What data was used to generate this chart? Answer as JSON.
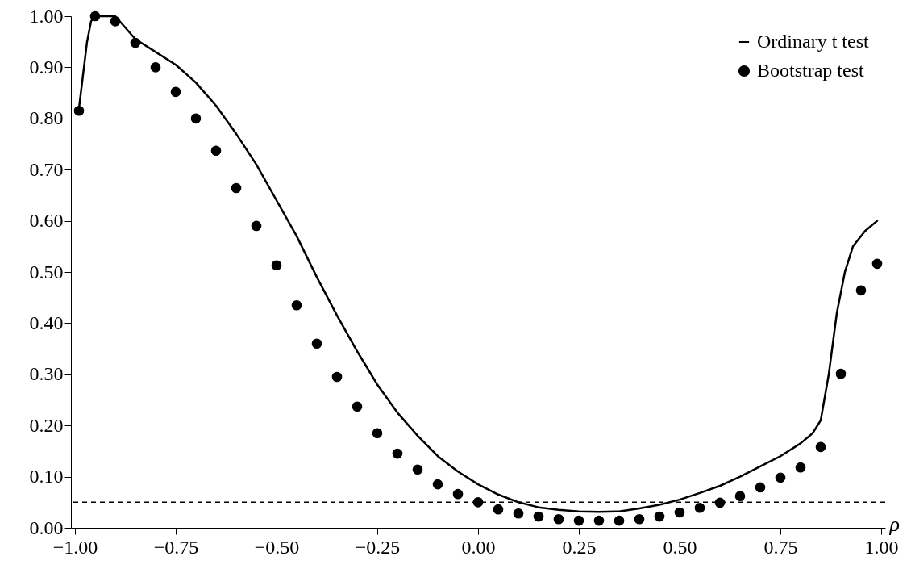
{
  "chart_data": {
    "type": "line",
    "xlabel": "ρ",
    "series": [
      {
        "name": "Ordinary t test",
        "color": "#000000",
        "marker": "none",
        "line_style": "solid",
        "x": [
          -0.99,
          -0.97,
          -0.96,
          -0.95,
          -0.9,
          -0.85,
          -0.8,
          -0.75,
          -0.7,
          -0.65,
          -0.6,
          -0.55,
          -0.5,
          -0.45,
          -0.4,
          -0.35,
          -0.3,
          -0.25,
          -0.2,
          -0.15,
          -0.1,
          -0.05,
          0,
          0.05,
          0.1,
          0.15,
          0.2,
          0.25,
          0.3,
          0.35,
          0.4,
          0.45,
          0.5,
          0.55,
          0.6,
          0.65,
          0.7,
          0.75,
          0.8,
          0.83,
          0.85,
          0.87,
          0.89,
          0.91,
          0.93,
          0.96,
          0.99
        ],
        "values": [
          0.82,
          0.95,
          0.99,
          1.0,
          1.0,
          0.955,
          0.93,
          0.905,
          0.87,
          0.825,
          0.77,
          0.71,
          0.64,
          0.57,
          0.49,
          0.415,
          0.345,
          0.28,
          0.225,
          0.18,
          0.14,
          0.11,
          0.085,
          0.065,
          0.05,
          0.04,
          0.035,
          0.032,
          0.031,
          0.032,
          0.038,
          0.045,
          0.055,
          0.068,
          0.082,
          0.1,
          0.12,
          0.14,
          0.165,
          0.185,
          0.21,
          0.3,
          0.42,
          0.5,
          0.55,
          0.58,
          0.6
        ]
      },
      {
        "name": "Bootstrap test",
        "type": "scatter",
        "color": "#000000",
        "marker": "circle",
        "x": [
          -0.99,
          -0.95,
          -0.9,
          -0.85,
          -0.8,
          -0.75,
          -0.7,
          -0.65,
          -0.6,
          -0.55,
          -0.5,
          -0.45,
          -0.4,
          -0.35,
          -0.3,
          -0.25,
          -0.2,
          -0.15,
          -0.1,
          -0.05,
          0,
          0.05,
          0.1,
          0.15,
          0.2,
          0.25,
          0.3,
          0.35,
          0.4,
          0.45,
          0.5,
          0.55,
          0.6,
          0.65,
          0.7,
          0.75,
          0.8,
          0.85,
          0.9,
          0.95,
          0.99
        ],
        "values": [
          0.815,
          1.0,
          0.99,
          0.948,
          0.9,
          0.852,
          0.8,
          0.737,
          0.664,
          0.59,
          0.513,
          0.435,
          0.36,
          0.295,
          0.237,
          0.185,
          0.145,
          0.114,
          0.085,
          0.066,
          0.05,
          0.036,
          0.028,
          0.022,
          0.017,
          0.014,
          0.014,
          0.014,
          0.017,
          0.022,
          0.03,
          0.039,
          0.049,
          0.062,
          0.079,
          0.098,
          0.118,
          0.158,
          0.301,
          0.464,
          0.516
        ]
      }
    ],
    "xlim": [
      -1.01,
      1.01
    ],
    "ylim": [
      0,
      1
    ],
    "xticks": [
      {
        "value": -1,
        "label": "−1.00"
      },
      {
        "value": -0.75,
        "label": "−0.75"
      },
      {
        "value": -0.5,
        "label": "−0.50"
      },
      {
        "value": -0.25,
        "label": "−0.25"
      },
      {
        "value": 0,
        "label": "0.00"
      },
      {
        "value": 0.25,
        "label": "0.25"
      },
      {
        "value": 0.5,
        "label": "0.50"
      },
      {
        "value": 0.75,
        "label": "0.75"
      },
      {
        "value": 1,
        "label": "1.00"
      }
    ],
    "yticks": [
      {
        "value": 0,
        "label": "0.00"
      },
      {
        "value": 0.1,
        "label": "0.10"
      },
      {
        "value": 0.2,
        "label": "0.20"
      },
      {
        "value": 0.3,
        "label": "0.30"
      },
      {
        "value": 0.4,
        "label": "0.40"
      },
      {
        "value": 0.5,
        "label": "0.50"
      },
      {
        "value": 0.6,
        "label": "0.60"
      },
      {
        "value": 0.7,
        "label": "0.70"
      },
      {
        "value": 0.8,
        "label": "0.80"
      },
      {
        "value": 0.9,
        "label": "0.90"
      },
      {
        "value": 1,
        "label": "1.00"
      }
    ],
    "ref_lines": [
      {
        "axis": "y",
        "value": 0.05,
        "line_style": "dashed",
        "color": "#000000"
      }
    ],
    "grid": false,
    "legend": "top right"
  }
}
